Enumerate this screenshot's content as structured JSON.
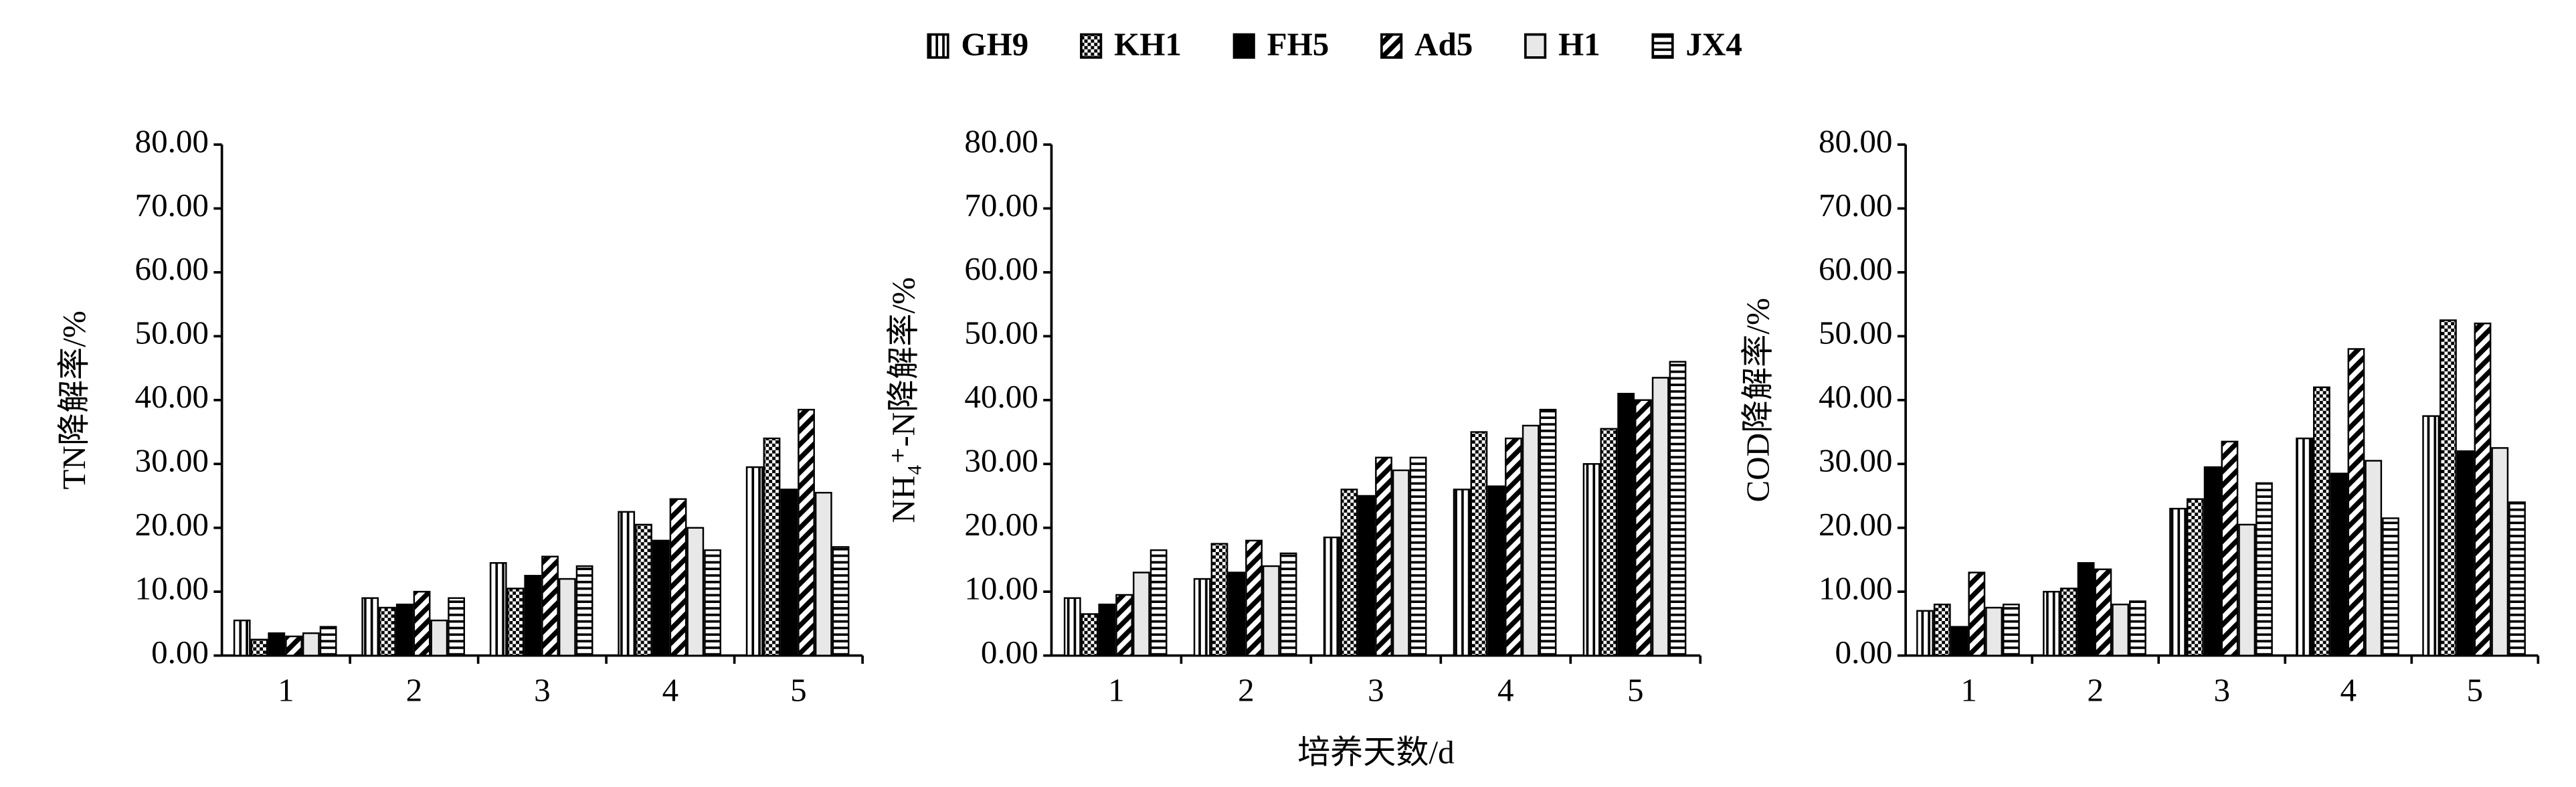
{
  "chart_data": [
    {
      "type": "bar",
      "y_label": "TN降解率/%",
      "categories": [
        "1",
        "2",
        "3",
        "4",
        "5"
      ],
      "ylim": [
        0,
        80
      ],
      "yticks": [
        {
          "value": 0,
          "label": "0.00"
        },
        {
          "value": 10,
          "label": "10.00"
        },
        {
          "value": 20,
          "label": "20.00"
        },
        {
          "value": 30,
          "label": "30.00"
        },
        {
          "value": 40,
          "label": "40.00"
        },
        {
          "value": 50,
          "label": "50.00"
        },
        {
          "value": 60,
          "label": "60.00"
        },
        {
          "value": 70,
          "label": "70.00"
        },
        {
          "value": 80,
          "label": "80.00"
        }
      ],
      "series": [
        {
          "name": "GH9",
          "color": "#ffffff",
          "pattern": "vertical",
          "values": [
            5.5,
            9,
            14.5,
            22.5,
            29.5
          ]
        },
        {
          "name": "KH1",
          "color": "#ffffff",
          "pattern": "checker",
          "values": [
            2.5,
            7.5,
            10.5,
            20.5,
            34
          ]
        },
        {
          "name": "FH5",
          "color": "#000000",
          "pattern": "solid",
          "values": [
            3.5,
            8,
            12.5,
            18,
            26
          ]
        },
        {
          "name": "Ad5",
          "color": "#ffffff",
          "pattern": "diagonal",
          "values": [
            3,
            10,
            15.5,
            24.5,
            38.5
          ]
        },
        {
          "name": "H1",
          "color": "#e8e8e8",
          "pattern": "solid",
          "values": [
            3.5,
            5.5,
            12,
            20,
            25.5
          ]
        },
        {
          "name": "JX4",
          "color": "#ffffff",
          "pattern": "horizontal",
          "values": [
            4.5,
            9,
            14,
            16.5,
            17
          ]
        }
      ]
    },
    {
      "type": "bar",
      "y_label": "NH₄⁺-N降解率/%",
      "x_label": "培养天数/d",
      "categories": [
        "1",
        "2",
        "3",
        "4",
        "5"
      ],
      "ylim": [
        0,
        80
      ],
      "yticks": [
        {
          "value": 0,
          "label": "0.00"
        },
        {
          "value": 10,
          "label": "10.00"
        },
        {
          "value": 20,
          "label": "20.00"
        },
        {
          "value": 30,
          "label": "30.00"
        },
        {
          "value": 40,
          "label": "40.00"
        },
        {
          "value": 50,
          "label": "50.00"
        },
        {
          "value": 60,
          "label": "60.00"
        },
        {
          "value": 70,
          "label": "70.00"
        },
        {
          "value": 80,
          "label": "80.00"
        }
      ],
      "series": [
        {
          "color": "#ffffff",
          "pattern": "vertical",
          "values": [
            9,
            12,
            18.5,
            26,
            30
          ]
        },
        {
          "color": "#ffffff",
          "pattern": "checker",
          "values": [
            6.5,
            17.5,
            26,
            35,
            35.5
          ]
        },
        {
          "color": "#000000",
          "pattern": "solid",
          "values": [
            8,
            13,
            25,
            26.5,
            41
          ]
        },
        {
          "color": "#ffffff",
          "pattern": "diagonal",
          "values": [
            9.5,
            18,
            31,
            34,
            40
          ]
        },
        {
          "color": "#e8e8e8",
          "pattern": "solid",
          "values": [
            13,
            14,
            29,
            36,
            43.5
          ]
        },
        {
          "color": "#ffffff",
          "pattern": "horizontal",
          "values": [
            16.5,
            16,
            31,
            38.5,
            46
          ]
        }
      ]
    },
    {
      "type": "bar",
      "y_label": "COD降解率/%",
      "categories": [
        "1",
        "2",
        "3",
        "4",
        "5"
      ],
      "ylim": [
        0,
        80
      ],
      "yticks": [
        {
          "value": 0,
          "label": "0.00"
        },
        {
          "value": 10,
          "label": "10.00"
        },
        {
          "value": 20,
          "label": "20.00"
        },
        {
          "value": 30,
          "label": "30.00"
        },
        {
          "value": 40,
          "label": "40.00"
        },
        {
          "value": 50,
          "label": "50.00"
        },
        {
          "value": 60,
          "label": "60.00"
        },
        {
          "value": 70,
          "label": "70.00"
        },
        {
          "value": 80,
          "label": "80.00"
        }
      ],
      "series": [
        {
          "color": "#ffffff",
          "pattern": "vertical",
          "values": [
            7,
            10,
            23,
            34,
            37.5
          ]
        },
        {
          "color": "#ffffff",
          "pattern": "checker",
          "values": [
            8,
            10.5,
            24.5,
            42,
            52.5
          ]
        },
        {
          "color": "#000000",
          "pattern": "solid",
          "values": [
            4.5,
            14.5,
            29.5,
            28.5,
            32
          ]
        },
        {
          "color": "#ffffff",
          "pattern": "diagonal",
          "values": [
            13,
            13.5,
            33.5,
            48,
            52
          ]
        },
        {
          "color": "#e8e8e8",
          "pattern": "solid",
          "values": [
            7.5,
            8,
            20.5,
            30.5,
            32.5
          ]
        },
        {
          "color": "#ffffff",
          "pattern": "horizontal",
          "values": [
            8,
            8.5,
            27,
            21.5,
            24
          ]
        }
      ]
    }
  ]
}
